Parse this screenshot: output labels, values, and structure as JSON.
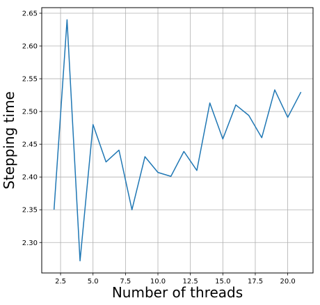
{
  "chart_data": {
    "type": "line",
    "title": "",
    "xlabel": "Number of threads",
    "ylabel": "Stepping time",
    "xlim": [
      1.05,
      21.95
    ],
    "ylim": [
      2.2535,
      2.6585
    ],
    "grid": true,
    "x_ticks": [
      2.5,
      5.0,
      7.5,
      10.0,
      12.5,
      15.0,
      17.5,
      20.0
    ],
    "x_tick_labels": [
      "2.5",
      "5.0",
      "7.5",
      "10.0",
      "12.5",
      "15.0",
      "17.5",
      "20.0"
    ],
    "y_ticks": [
      2.3,
      2.35,
      2.4,
      2.45,
      2.5,
      2.55,
      2.6,
      2.65
    ],
    "y_tick_labels": [
      "2.30",
      "2.35",
      "2.40",
      "2.45",
      "2.50",
      "2.55",
      "2.60",
      "2.65"
    ],
    "series": [
      {
        "color": "#1f77b4",
        "x": [
          2,
          3,
          4,
          5,
          6,
          7,
          8,
          9,
          10,
          11,
          12,
          13,
          14,
          15,
          16,
          17,
          18,
          19,
          20,
          21
        ],
        "y": [
          2.351,
          2.64,
          2.272,
          2.48,
          2.423,
          2.441,
          2.35,
          2.431,
          2.407,
          2.401,
          2.439,
          2.41,
          2.513,
          2.458,
          2.51,
          2.494,
          2.46,
          2.533,
          2.491,
          2.529
        ]
      }
    ]
  }
}
